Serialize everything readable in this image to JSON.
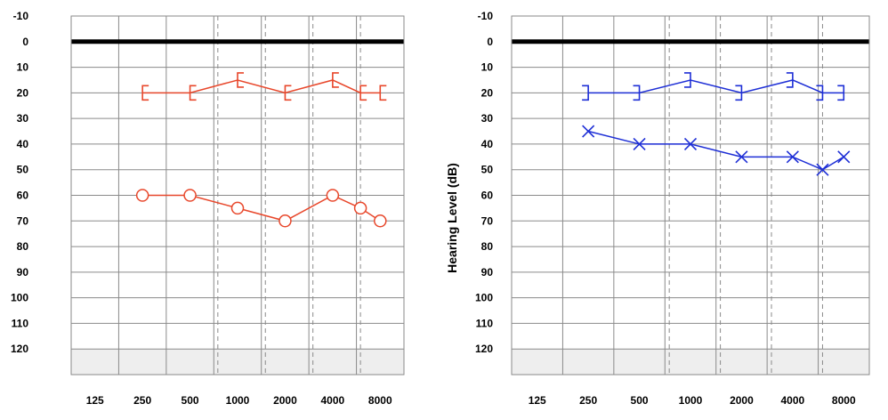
{
  "colors": {
    "right_ear": "#e8472b",
    "left_ear": "#1e2fd6",
    "grid": "#8a8a8a",
    "zero_line": "#000000",
    "shaded_zone": "#eeeeee"
  },
  "chart_data": [
    {
      "type": "line",
      "ear": "right",
      "title": "",
      "xlabel": "",
      "ylabel": "",
      "x_categories": [
        "125",
        "250",
        "500",
        "1000",
        "2000",
        "4000",
        "8000"
      ],
      "x_interoctave": [
        "750",
        "1500",
        "3000",
        "6000"
      ],
      "y_ticks": [
        "-10",
        "0",
        "10",
        "20",
        "30",
        "40",
        "50",
        "60",
        "70",
        "80",
        "90",
        "100",
        "110",
        "120"
      ],
      "ylim": [
        -10,
        130
      ],
      "y_inverted": true,
      "grid": true,
      "shaded_below": 120,
      "series": [
        {
          "symbol": "bracket-open-right",
          "color": "#e8472b",
          "points": [
            {
              "x": "250",
              "y": 20
            },
            {
              "x": "500",
              "y": 20
            },
            {
              "x": "1000",
              "y": 15
            },
            {
              "x": "2000",
              "y": 20
            },
            {
              "x": "4000",
              "y": 15
            },
            {
              "x": "6000",
              "y": 20
            },
            {
              "x": "8000",
              "y": 20
            }
          ]
        },
        {
          "symbol": "circle",
          "color": "#e8472b",
          "points": [
            {
              "x": "250",
              "y": 60
            },
            {
              "x": "500",
              "y": 60
            },
            {
              "x": "1000",
              "y": 65
            },
            {
              "x": "2000",
              "y": 70
            },
            {
              "x": "4000",
              "y": 60
            },
            {
              "x": "6000",
              "y": 65
            },
            {
              "x": "8000",
              "y": 70
            }
          ]
        }
      ]
    },
    {
      "type": "line",
      "ear": "left",
      "title": "",
      "xlabel": "",
      "ylabel": "Hearing Level (dB)",
      "x_categories": [
        "125",
        "250",
        "500",
        "1000",
        "2000",
        "4000",
        "8000"
      ],
      "x_interoctave": [
        "750",
        "1500",
        "3000",
        "6000"
      ],
      "y_ticks": [
        "-10",
        "0",
        "10",
        "20",
        "30",
        "40",
        "50",
        "60",
        "70",
        "80",
        "90",
        "100",
        "110",
        "120"
      ],
      "ylim": [
        -10,
        130
      ],
      "y_inverted": true,
      "grid": true,
      "shaded_below": 120,
      "series": [
        {
          "symbol": "bracket-open-left",
          "color": "#1e2fd6",
          "points": [
            {
              "x": "250",
              "y": 20
            },
            {
              "x": "500",
              "y": 20
            },
            {
              "x": "1000",
              "y": 15
            },
            {
              "x": "2000",
              "y": 20
            },
            {
              "x": "4000",
              "y": 15
            },
            {
              "x": "6000",
              "y": 20
            },
            {
              "x": "8000",
              "y": 20
            }
          ]
        },
        {
          "symbol": "cross",
          "color": "#1e2fd6",
          "points": [
            {
              "x": "250",
              "y": 35
            },
            {
              "x": "500",
              "y": 40
            },
            {
              "x": "1000",
              "y": 40
            },
            {
              "x": "2000",
              "y": 45
            },
            {
              "x": "4000",
              "y": 45
            },
            {
              "x": "6000",
              "y": 50
            },
            {
              "x": "8000",
              "y": 45
            }
          ]
        }
      ]
    }
  ]
}
